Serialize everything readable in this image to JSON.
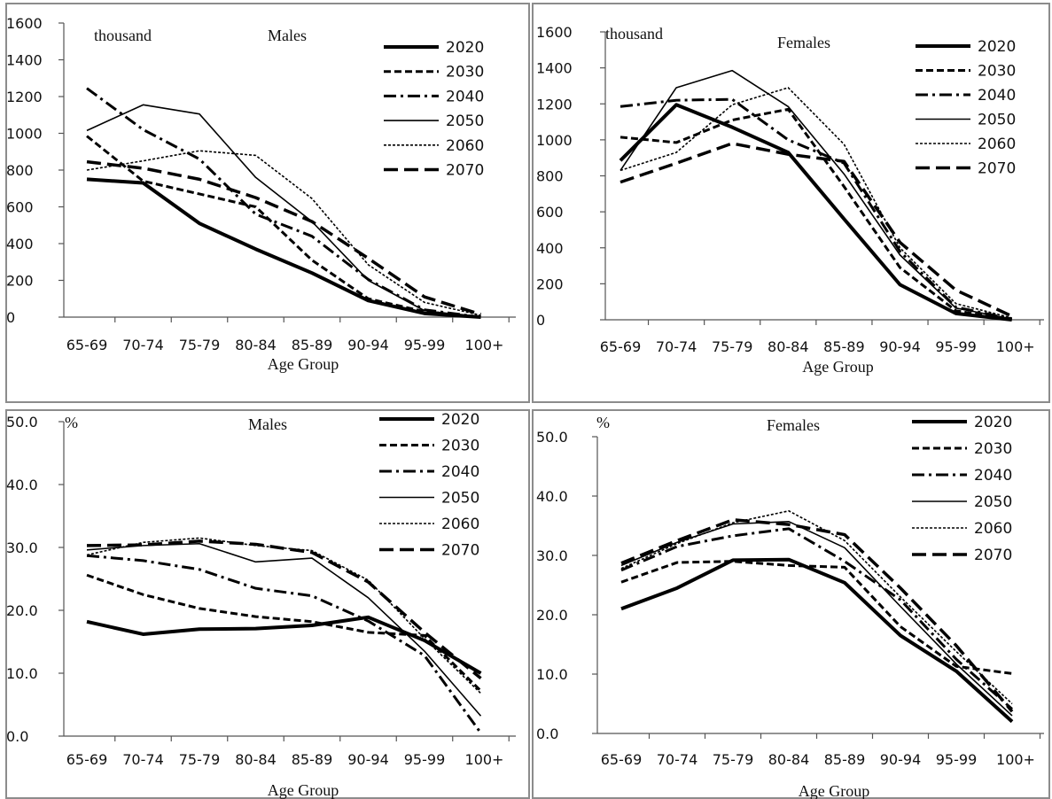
{
  "colors": {
    "line": "#000000",
    "axis": "#555555",
    "frame": "#8c8c8c"
  },
  "chart_data": [
    {
      "type": "line",
      "title": "Males",
      "unit_label": "thousand",
      "xlabel": "Age Group",
      "categories": [
        "65-69",
        "70-74",
        "75-79",
        "80-84",
        "85-89",
        "90-94",
        "95-99",
        "100+"
      ],
      "ylim": [
        0,
        1600
      ],
      "yticks": [
        "0",
        "200",
        "400",
        "600",
        "800",
        "1000",
        "1200",
        "1400",
        "1600"
      ],
      "legend": "top-right",
      "series": [
        {
          "name": "2020",
          "values": [
            750,
            730,
            510,
            370,
            240,
            90,
            20,
            0
          ]
        },
        {
          "name": "2030",
          "values": [
            985,
            740,
            670,
            600,
            310,
            100,
            30,
            0
          ]
        },
        {
          "name": "2040",
          "values": [
            1245,
            1020,
            860,
            560,
            440,
            205,
            40,
            0
          ]
        },
        {
          "name": "2050",
          "values": [
            1015,
            1155,
            1105,
            760,
            520,
            200,
            35,
            0
          ]
        },
        {
          "name": "2060",
          "values": [
            800,
            850,
            905,
            880,
            645,
            285,
            80,
            10
          ]
        },
        {
          "name": "2070",
          "values": [
            845,
            810,
            750,
            650,
            520,
            320,
            110,
            15
          ]
        }
      ]
    },
    {
      "type": "line",
      "title": "Females",
      "unit_label": "thousand",
      "xlabel": "Age Group",
      "categories": [
        "65-69",
        "70-74",
        "75-79",
        "80-84",
        "85-89",
        "90-94",
        "95-99",
        "100+"
      ],
      "ylim": [
        0,
        1600
      ],
      "yticks": [
        "0",
        "200",
        "400",
        "600",
        "800",
        "1000",
        "1200",
        "1400",
        "1600"
      ],
      "legend": "top-right",
      "series": [
        {
          "name": "2020",
          "values": [
            885,
            1195,
            1070,
            930,
            560,
            195,
            35,
            0
          ]
        },
        {
          "name": "2030",
          "values": [
            1015,
            985,
            1110,
            1170,
            740,
            290,
            50,
            0
          ]
        },
        {
          "name": "2040",
          "values": [
            1185,
            1220,
            1225,
            1000,
            870,
            380,
            70,
            5
          ]
        },
        {
          "name": "2050",
          "values": [
            830,
            1290,
            1385,
            1185,
            810,
            360,
            65,
            5
          ]
        },
        {
          "name": "2060",
          "values": [
            830,
            930,
            1195,
            1290,
            975,
            400,
            90,
            10
          ]
        },
        {
          "name": "2070",
          "values": [
            765,
            870,
            980,
            920,
            880,
            430,
            165,
            20
          ]
        }
      ]
    },
    {
      "type": "line",
      "title": "Males",
      "unit_label": "%",
      "xlabel": "Age Group",
      "categories": [
        "65-69",
        "70-74",
        "75-79",
        "80-84",
        "85-89",
        "90-94",
        "95-99",
        "100+"
      ],
      "ylim": [
        0,
        50
      ],
      "yticks": [
        "0.0",
        "10.0",
        "20.0",
        "30.0",
        "40.0",
        "50.0"
      ],
      "legend": "top-right",
      "series": [
        {
          "name": "2020",
          "values": [
            18.2,
            16.2,
            17.0,
            17.1,
            17.6,
            18.9,
            15.2,
            10.0
          ]
        },
        {
          "name": "2030",
          "values": [
            25.6,
            22.5,
            20.3,
            19.0,
            18.2,
            16.5,
            16.0,
            7.2
          ]
        },
        {
          "name": "2040",
          "values": [
            28.7,
            27.9,
            26.5,
            23.5,
            22.3,
            18.3,
            12.8,
            0.5
          ]
        },
        {
          "name": "2050",
          "values": [
            29.6,
            30.3,
            30.6,
            27.7,
            28.3,
            22.0,
            13.5,
            3.2
          ]
        },
        {
          "name": "2060",
          "values": [
            28.8,
            30.8,
            31.5,
            30.3,
            29.5,
            24.8,
            15.5,
            6.8
          ]
        },
        {
          "name": "2070",
          "values": [
            30.3,
            30.4,
            31.0,
            30.5,
            29.2,
            24.5,
            16.5,
            9.2
          ]
        }
      ]
    },
    {
      "type": "line",
      "title": "Females",
      "unit_label": "%",
      "xlabel": "Age Group",
      "categories": [
        "65-69",
        "70-74",
        "75-79",
        "80-84",
        "85-89",
        "90-94",
        "95-99",
        "100+"
      ],
      "ylim": [
        0,
        50
      ],
      "yticks": [
        "0.0",
        "10.0",
        "20.0",
        "30.0",
        "40.0",
        "50.0"
      ],
      "legend": "top-right",
      "series": [
        {
          "name": "2020",
          "values": [
            21.0,
            24.5,
            29.2,
            29.3,
            25.4,
            16.5,
            10.5,
            2.0
          ]
        },
        {
          "name": "2030",
          "values": [
            25.5,
            28.8,
            29.0,
            28.3,
            28.0,
            18.0,
            11.3,
            10.1
          ]
        },
        {
          "name": "2040",
          "values": [
            27.5,
            31.5,
            33.3,
            34.5,
            29.0,
            22.5,
            12.5,
            4.1
          ]
        },
        {
          "name": "2050",
          "values": [
            28.3,
            32.2,
            35.3,
            35.7,
            31.3,
            21.4,
            11.7,
            3.0
          ]
        },
        {
          "name": "2060",
          "values": [
            27.8,
            32.0,
            35.5,
            37.5,
            32.5,
            23.0,
            13.8,
            5.0
          ]
        },
        {
          "name": "2070",
          "values": [
            28.7,
            32.5,
            36.0,
            35.2,
            33.5,
            24.5,
            14.8,
            3.7
          ]
        }
      ]
    }
  ]
}
